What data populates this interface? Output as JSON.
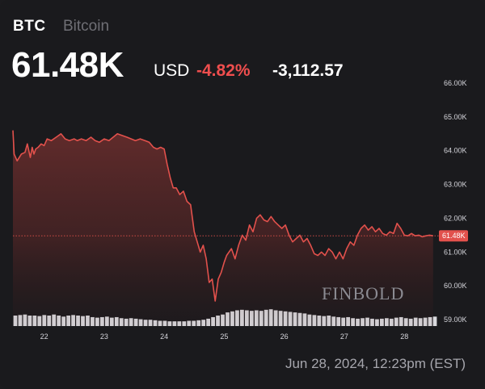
{
  "header": {
    "ticker": "BTC",
    "name": "Bitcoin",
    "price": "61.48K",
    "currency": "USD",
    "change_pct": "-4.82%",
    "change_abs": "-3,112.57"
  },
  "footer": {
    "timestamp": "Jun 28, 2024, 12:23pm (EST)"
  },
  "watermark": "FINBOLD",
  "colors": {
    "background": "#1a1a1d",
    "line": "#e2514c",
    "volume": "#d9d9dd",
    "last_price_label_bg": "#e2514c"
  },
  "chart_data": {
    "type": "line",
    "x_ticks": [
      "22",
      "23",
      "24",
      "25",
      "26",
      "27",
      "28"
    ],
    "y_ticks": [
      "66.00K",
      "65.00K",
      "64.00K",
      "63.00K",
      "62.00K",
      "61.00K",
      "60.00K",
      "59.00K"
    ],
    "ylim": [
      59000,
      66000
    ],
    "last_price": 61480,
    "last_price_label": "61.48K",
    "grid": false,
    "series": [
      {
        "x": [
          21.48,
          21.5,
          21.55,
          21.62,
          21.68,
          21.72,
          21.77,
          21.8,
          21.83,
          21.86,
          21.9,
          21.95,
          22.0,
          22.05,
          22.12,
          22.2,
          22.28,
          22.35,
          22.42,
          22.5,
          22.55,
          22.62,
          22.7,
          22.78,
          22.85,
          22.92,
          23.0,
          23.08,
          23.15,
          23.22,
          23.3,
          23.38,
          23.45,
          23.52,
          23.6,
          23.68,
          23.75,
          23.82,
          23.88,
          23.94,
          24.0,
          24.05,
          24.1,
          24.15,
          24.2,
          24.26,
          24.32,
          24.38,
          24.44,
          24.5,
          24.55,
          24.6,
          24.65,
          24.7,
          24.75,
          24.8,
          24.85,
          24.9,
          24.95,
          25.0,
          25.04,
          25.08,
          25.12,
          25.18,
          25.24,
          25.3,
          25.36,
          25.42,
          25.48,
          25.54,
          25.6,
          25.66,
          25.72,
          25.78,
          25.84,
          25.9,
          25.96,
          26.02,
          26.08,
          26.14,
          26.2,
          26.26,
          26.32,
          26.38,
          26.44,
          26.5,
          26.56,
          26.62,
          26.68,
          26.74,
          26.8,
          26.86,
          26.92,
          26.98,
          27.04,
          27.1,
          27.16,
          27.22,
          27.28,
          27.34,
          27.4,
          27.46,
          27.52,
          27.58,
          27.64,
          27.7,
          27.76,
          27.82,
          27.88,
          27.94,
          28.0,
          28.06,
          28.12,
          28.18,
          28.24,
          28.3,
          28.36,
          28.42,
          28.48
        ],
        "y": [
          64600,
          63900,
          63700,
          63900,
          63950,
          64200,
          63800,
          64100,
          63900,
          64050,
          64100,
          64200,
          64150,
          64350,
          64300,
          64400,
          64500,
          64350,
          64300,
          64350,
          64300,
          64350,
          64300,
          64400,
          64300,
          64250,
          64350,
          64300,
          64400,
          64500,
          64450,
          64400,
          64350,
          64300,
          64350,
          64300,
          64250,
          64100,
          64050,
          64100,
          64050,
          63600,
          63200,
          62900,
          62900,
          62700,
          62800,
          62500,
          62400,
          61600,
          61300,
          61000,
          61200,
          60800,
          60100,
          60200,
          59550,
          60200,
          60400,
          60700,
          60900,
          61000,
          61100,
          60800,
          61200,
          61500,
          61350,
          61800,
          61600,
          62000,
          62100,
          61950,
          61900,
          62050,
          61900,
          61800,
          61700,
          61800,
          61500,
          61300,
          61400,
          61500,
          61300,
          61400,
          61200,
          60950,
          60900,
          61000,
          60900,
          61100,
          61000,
          60800,
          61000,
          60800,
          61100,
          61300,
          61200,
          61500,
          61700,
          61800,
          61650,
          61750,
          61600,
          61700,
          61550,
          61500,
          61600,
          61550,
          61850,
          61700,
          61500,
          61480,
          61550,
          61480,
          61500,
          61450,
          61480,
          61500,
          61480
        ]
      }
    ],
    "volume": [
      1.0,
      1.05,
      1.1,
      1.0,
      1.0,
      0.95,
      1.05,
      1.0,
      1.1,
      1.0,
      0.9,
      1.0,
      1.05,
      1.0,
      0.95,
      1.0,
      0.85,
      0.8,
      0.85,
      0.9,
      0.8,
      0.85,
      0.75,
      0.7,
      0.75,
      0.7,
      0.65,
      0.6,
      0.6,
      0.55,
      0.5,
      0.5,
      0.45,
      0.45,
      0.45,
      0.45,
      0.5,
      0.5,
      0.55,
      0.6,
      0.7,
      0.85,
      1.0,
      1.1,
      1.3,
      1.4,
      1.5,
      1.55,
      1.5,
      1.45,
      1.5,
      1.45,
      1.55,
      1.6,
      1.5,
      1.45,
      1.4,
      1.35,
      1.3,
      1.25,
      1.2,
      1.1,
      1.05,
      1.0,
      0.95,
      1.0,
      0.9,
      0.85,
      0.8,
      0.85,
      0.75,
      0.7,
      0.75,
      0.8,
      0.7,
      0.65,
      0.7,
      0.75,
      0.7,
      0.8,
      0.85,
      0.75,
      0.7,
      0.8,
      0.75,
      0.8,
      0.85,
      0.9
    ]
  }
}
